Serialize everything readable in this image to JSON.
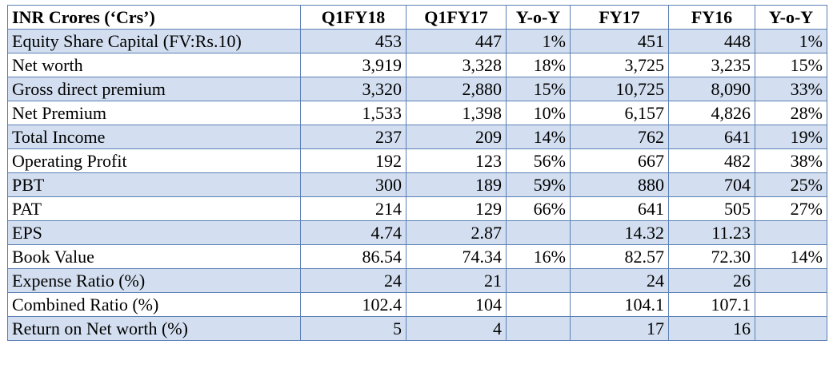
{
  "table": {
    "headers": [
      "INR Crores (‘Crs’)",
      "Q1FY18",
      "Q1FY17",
      "Y-o-Y",
      "FY17",
      "FY16",
      "Y-o-Y"
    ],
    "rows": [
      [
        "Equity Share Capital (FV:Rs.10)",
        "453",
        "447",
        "1%",
        "451",
        "448",
        "1%"
      ],
      [
        "Net worth",
        "3,919",
        "3,328",
        "18%",
        "3,725",
        "3,235",
        "15%"
      ],
      [
        "Gross direct premium",
        "3,320",
        "2,880",
        "15%",
        "10,725",
        "8,090",
        "33%"
      ],
      [
        "Net Premium",
        "1,533",
        "1,398",
        "10%",
        "6,157",
        "4,826",
        "28%"
      ],
      [
        "Total Income",
        "237",
        "209",
        "14%",
        "762",
        "641",
        "19%"
      ],
      [
        "Operating Profit",
        "192",
        "123",
        "56%",
        "667",
        "482",
        "38%"
      ],
      [
        "PBT",
        "300",
        "189",
        "59%",
        "880",
        "704",
        "25%"
      ],
      [
        "PAT",
        "214",
        "129",
        "66%",
        "641",
        "505",
        "27%"
      ],
      [
        "EPS",
        "4.74",
        "2.87",
        "",
        "14.32",
        "11.23",
        ""
      ],
      [
        "Book Value",
        "86.54",
        "74.34",
        "16%",
        "82.57",
        "72.30",
        "14%"
      ],
      [
        "Expense Ratio (%)",
        "24",
        "21",
        "",
        "24",
        "26",
        ""
      ],
      [
        "Combined Ratio (%)",
        "102.4",
        "104",
        "",
        "104.1",
        "107.1",
        ""
      ],
      [
        "Return on Net worth (%)",
        "5",
        "4",
        "",
        "17",
        "16",
        ""
      ]
    ]
  },
  "colors": {
    "row_shade": "#d3dff0",
    "border": "#5a7fb5"
  }
}
